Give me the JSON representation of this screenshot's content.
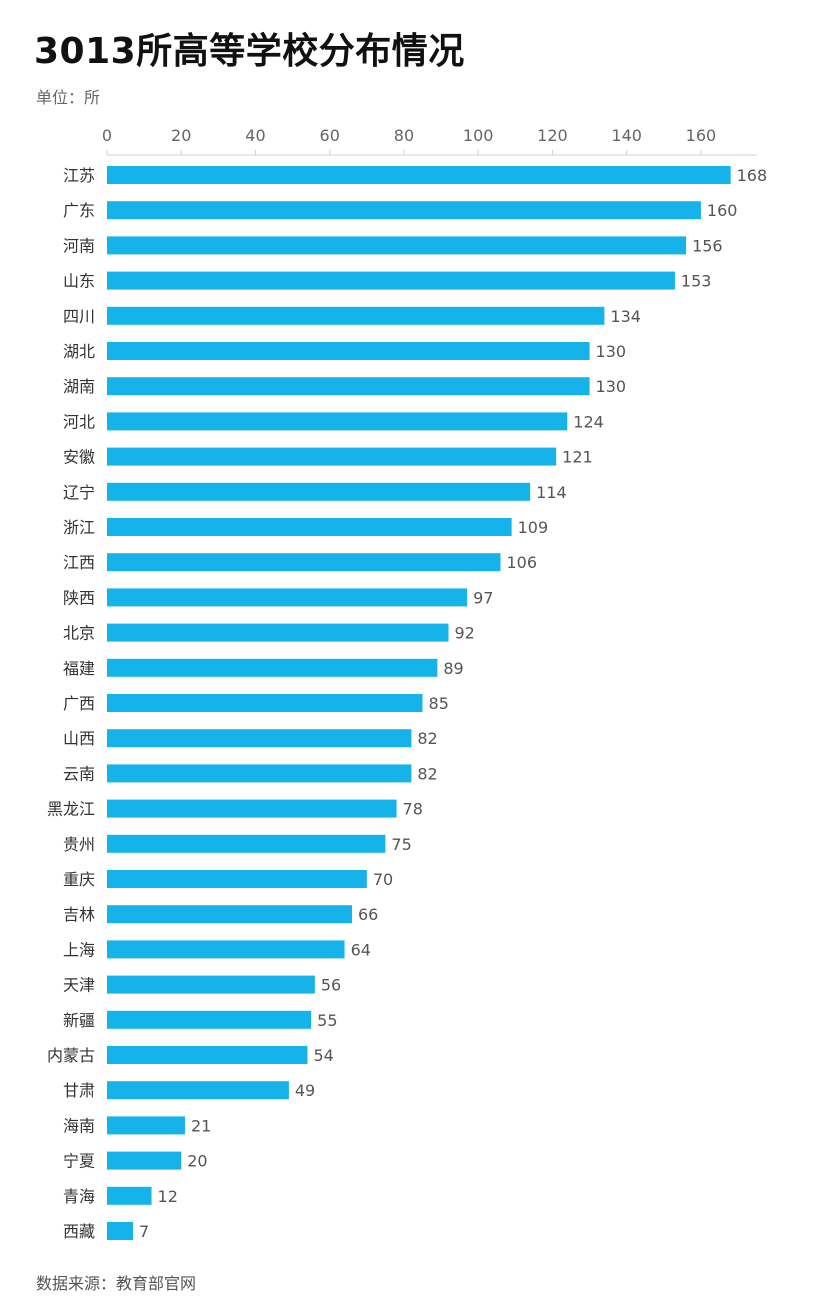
{
  "header": {
    "title": "3013所高等学校分布情况",
    "unit": "单位：所"
  },
  "footer": {
    "source": "数据来源：教育部官网"
  },
  "colors": {
    "bar": "#16b2ea",
    "axis": "#d0d0d0"
  },
  "chart_data": {
    "type": "bar",
    "orientation": "horizontal",
    "title": "3013所高等学校分布情况",
    "xlabel": "",
    "ylabel": "",
    "xlim": [
      0,
      175
    ],
    "xticks": [
      0,
      20,
      40,
      60,
      80,
      100,
      120,
      140,
      160
    ],
    "x_axis_position": "top",
    "grid": false,
    "categories": [
      "江苏",
      "广东",
      "河南",
      "山东",
      "四川",
      "湖北",
      "湖南",
      "河北",
      "安徽",
      "辽宁",
      "浙江",
      "江西",
      "陕西",
      "北京",
      "福建",
      "广西",
      "山西",
      "云南",
      "黑龙江",
      "贵州",
      "重庆",
      "吉林",
      "上海",
      "天津",
      "新疆",
      "内蒙古",
      "甘肃",
      "海南",
      "宁夏",
      "青海",
      "西藏"
    ],
    "values": [
      168,
      160,
      156,
      153,
      134,
      130,
      130,
      124,
      121,
      114,
      109,
      106,
      97,
      92,
      89,
      85,
      82,
      82,
      78,
      75,
      70,
      66,
      64,
      56,
      55,
      54,
      49,
      21,
      20,
      12,
      7
    ]
  }
}
